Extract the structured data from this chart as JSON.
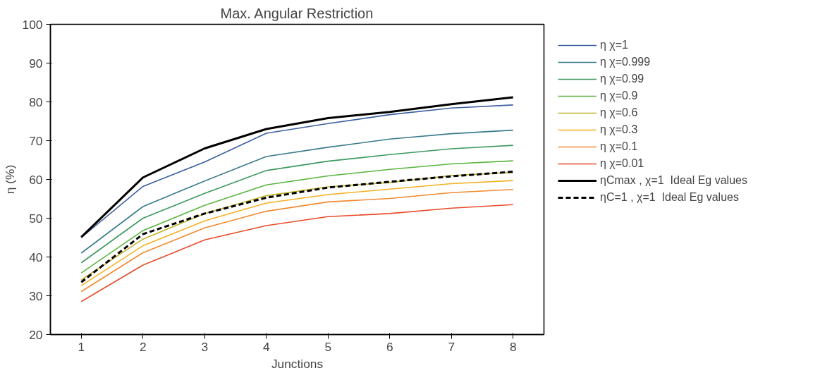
{
  "chart_data": {
    "type": "line",
    "title": "Max. Angular Restriction",
    "xlabel": "Junctions",
    "ylabel": "η (%)",
    "x": [
      1,
      2,
      3,
      4,
      5,
      6,
      7,
      8
    ],
    "xlim": [
      0.5,
      8.5
    ],
    "xticks": [
      1,
      2,
      3,
      4,
      5,
      6,
      7,
      8
    ],
    "ylim": [
      20,
      100
    ],
    "yticks": [
      20,
      30,
      40,
      50,
      60,
      70,
      80,
      90,
      100
    ],
    "grid": false,
    "legend": "right",
    "line_style": "solid",
    "marker": "none",
    "series": [
      {
        "name": "η χ=1",
        "color": "#3a5fa0",
        "values": [
          45.0,
          58.2,
          64.5,
          71.9,
          74.4,
          76.7,
          78.4,
          79.2
        ]
      },
      {
        "name": "η χ=0.999",
        "color": "#3a7a8a",
        "values": [
          41.0,
          53.0,
          59.6,
          65.9,
          68.3,
          70.4,
          71.8,
          72.7
        ]
      },
      {
        "name": "η χ=0.99",
        "color": "#3d9960",
        "values": [
          38.5,
          50.0,
          56.4,
          62.3,
          64.7,
          66.4,
          67.9,
          68.8
        ]
      },
      {
        "name": "η χ=0.9",
        "color": "#5ab540",
        "values": [
          35.9,
          46.8,
          53.3,
          58.6,
          60.9,
          62.6,
          64.0,
          64.8
        ]
      },
      {
        "name": "η χ=0.6",
        "color": "#c0b22a",
        "values": [
          34.1,
          44.6,
          51.2,
          55.8,
          58.1,
          59.2,
          61.0,
          61.8
        ]
      },
      {
        "name": "η χ=0.3",
        "color": "#f5b022",
        "values": [
          32.6,
          42.9,
          49.3,
          53.9,
          56.1,
          57.5,
          58.9,
          59.7
        ]
      },
      {
        "name": "η χ=0.1",
        "color": "#f08a30",
        "values": [
          31.1,
          41.1,
          47.5,
          51.8,
          54.2,
          55.1,
          56.6,
          57.4
        ]
      },
      {
        "name": "η χ=0.01",
        "color": "#e84c2a",
        "values": [
          28.5,
          37.9,
          44.4,
          48.1,
          50.4,
          51.2,
          52.6,
          53.5
        ]
      },
      {
        "name": "ηCmax , χ=1  Ideal Eg values",
        "color": "#000000",
        "values": [
          45.1,
          60.5,
          68.0,
          73.0,
          75.8,
          77.4,
          79.4,
          81.2
        ]
      },
      {
        "name": "ηC=1 , χ=1  Ideal Eg values",
        "color": "#000000",
        "line_style": "dashed",
        "values": [
          33.5,
          45.9,
          51.2,
          55.3,
          57.9,
          59.4,
          60.8,
          62.0
        ]
      }
    ]
  }
}
